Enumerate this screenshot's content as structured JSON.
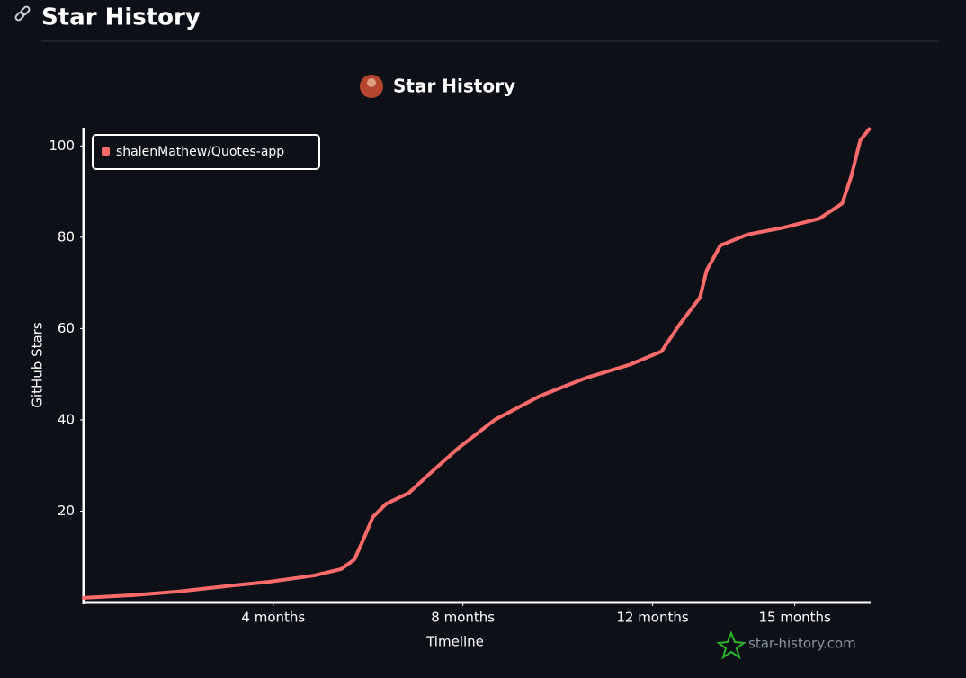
{
  "header": {
    "title": "Star History"
  },
  "chart_data": {
    "type": "line",
    "title": "Star History",
    "x_label": "Timeline",
    "y_label": "GitHub Stars",
    "x": [
      0,
      1.05,
      2,
      2.95,
      3.9,
      4.86,
      5.43,
      5.71,
      5.9,
      6.1,
      6.38,
      6.86,
      7.33,
      7.9,
      8.67,
      9.62,
      10.57,
      11.52,
      12.19,
      12.57,
      13,
      13.14,
      13.43,
      14,
      14.76,
      15.52,
      16,
      16.19,
      16.38,
      16.57
    ],
    "series": [
      {
        "name": "shalenMathew/Quotes-app",
        "color": "#ff6b6b",
        "values": [
          1,
          1.6,
          2.4,
          3.5,
          4.5,
          5.9,
          7.3,
          9.4,
          13.8,
          18.7,
          21.6,
          24,
          28.5,
          33.8,
          40,
          45.2,
          49.1,
          52.1,
          55,
          60.9,
          66.8,
          72.7,
          78.2,
          80.6,
          82.1,
          84.1,
          87.4,
          93.3,
          101.2,
          103.7
        ]
      }
    ],
    "xlim": [
      0,
      16.6
    ],
    "xticks": [
      {
        "value": 4,
        "label": "4 months"
      },
      {
        "value": 8,
        "label": "8 months"
      },
      {
        "value": 12,
        "label": "12 months"
      },
      {
        "value": 15,
        "label": "15 months"
      }
    ],
    "ylim": [
      0,
      104
    ],
    "yticks": [
      20,
      40,
      60,
      80,
      100
    ],
    "legend": "top-left",
    "watermark": "star-history.com"
  }
}
